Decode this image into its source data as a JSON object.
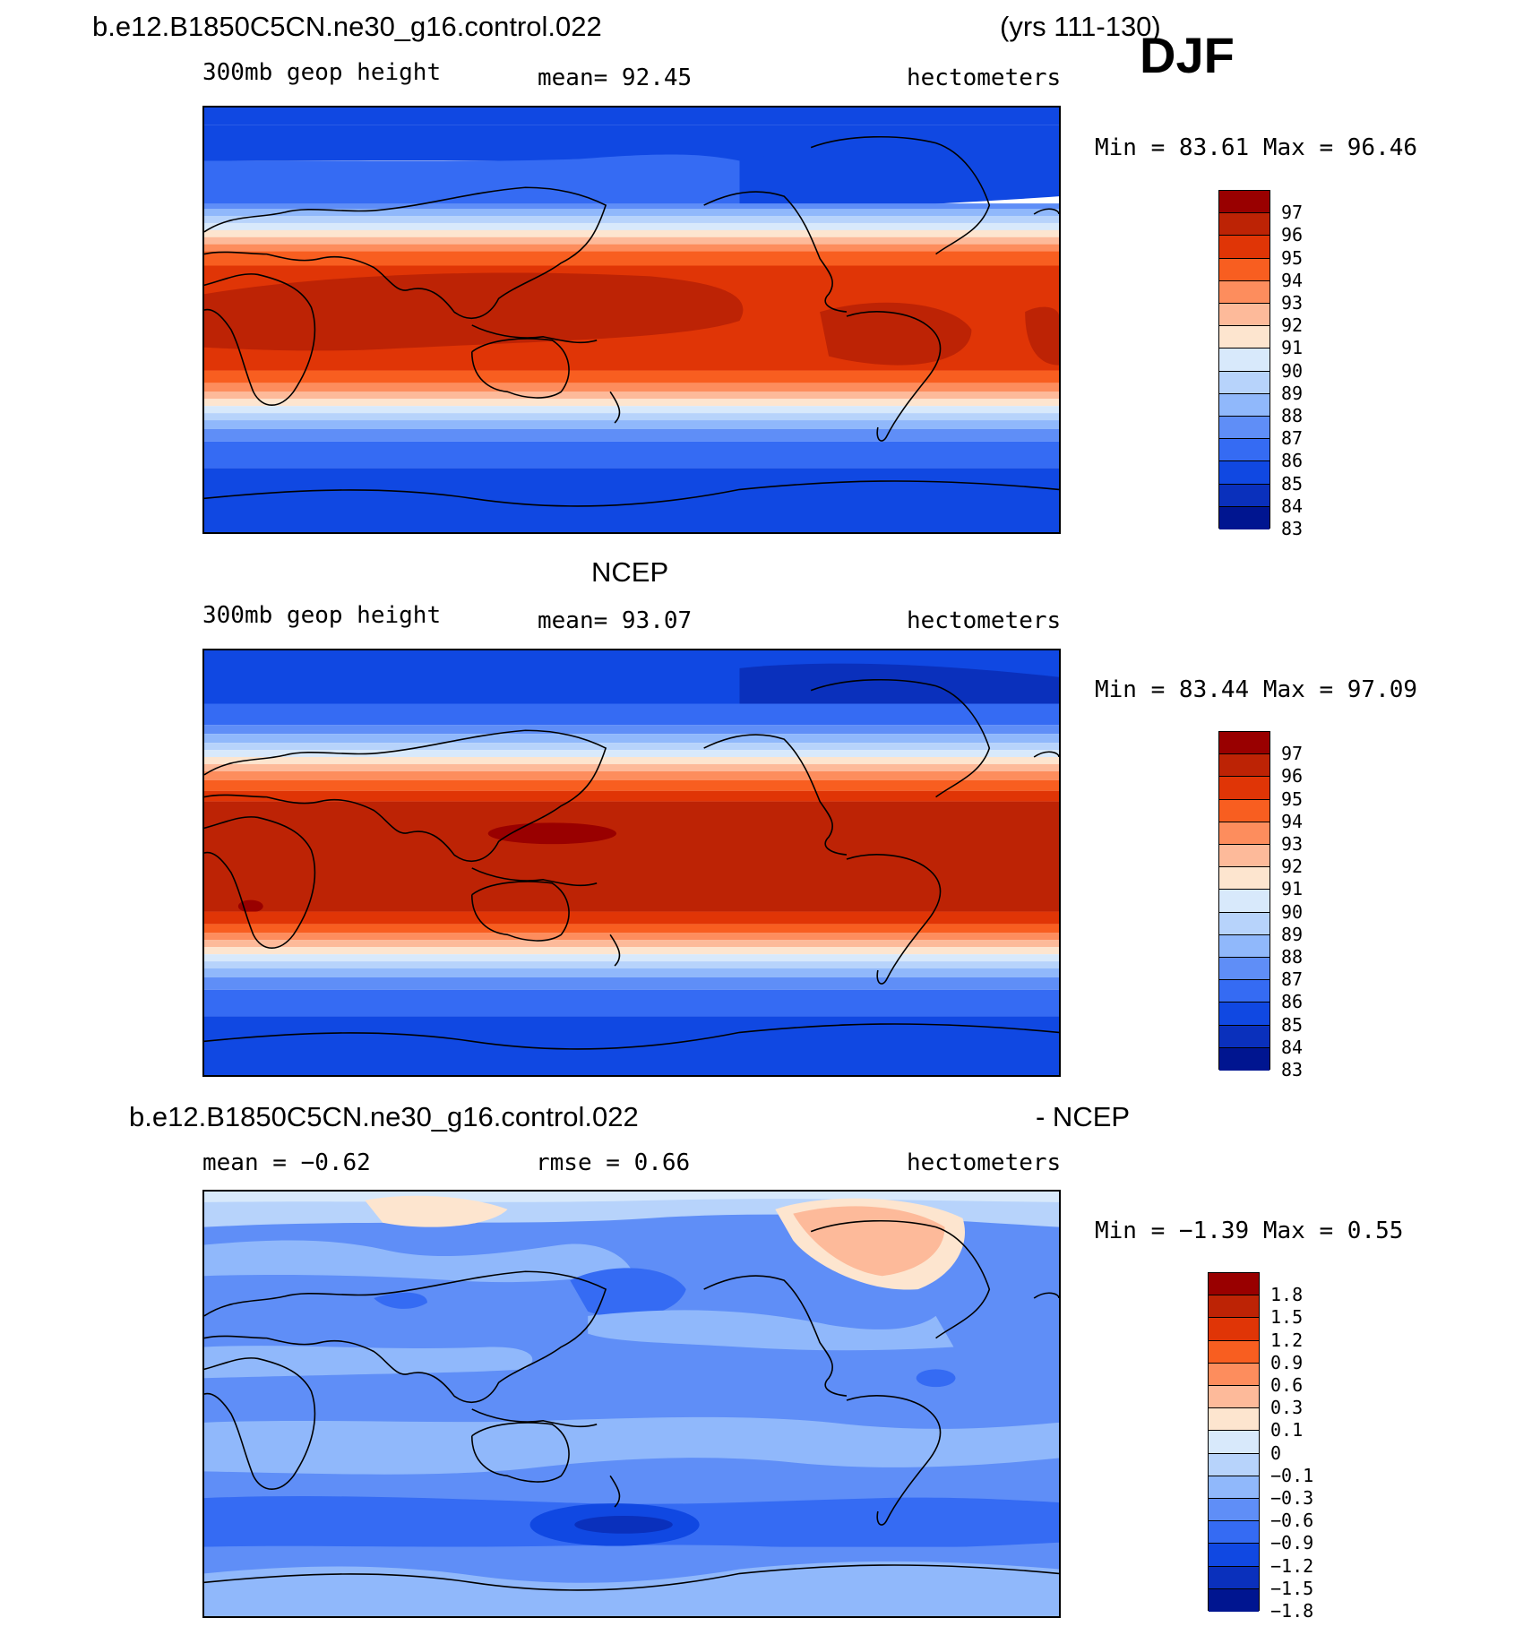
{
  "header": {
    "case_name": "b.e12.B1850C5CN.ne30_g16.control.022",
    "years": "(yrs 111-130)",
    "season": "DJF"
  },
  "colors": {
    "scale": [
      "#990000",
      "#bd2305",
      "#e03506",
      "#f85e20",
      "#fd8d5d",
      "#fdba9a",
      "#fde5cf",
      "#d8e9fb",
      "#b7d3fb",
      "#90b8fb",
      "#5f8ef7",
      "#356bf3",
      "#1048e2",
      "#0a30bc",
      "#001590"
    ],
    "coast": "#000000"
  },
  "panels": [
    {
      "title": "",
      "variable": "300mb geop height",
      "stat1": "mean=   92.45",
      "stat2": "",
      "units": "hectometers",
      "minmax": "Min =   83.61  Max =   96.46"
    },
    {
      "title": "NCEP",
      "variable": "300mb geop height",
      "stat1": "mean=   93.07",
      "stat2": "",
      "units": "hectometers",
      "minmax": "Min =   83.44  Max =   97.09"
    },
    {
      "title": "b.e12.B1850C5CN.ne30_g16.control.022",
      "title_right": "- NCEP",
      "variable": "",
      "stat1": "mean =   −0.62",
      "stat2": "rmse =    0.66",
      "units": "hectometers",
      "minmax": "Min =  −1.39  Max =    0.55"
    }
  ],
  "chart_data": [
    {
      "type": "heatmap",
      "title": "",
      "variable": "300mb geop height",
      "units": "hectometers",
      "mean": 92.45,
      "min": 83.61,
      "max": 96.46,
      "colorbar_levels": [
        "97",
        "96",
        "95",
        "94",
        "93",
        "92",
        "91",
        "90",
        "89",
        "88",
        "87",
        "86",
        "85",
        "84",
        "83"
      ]
    },
    {
      "type": "heatmap",
      "title": "NCEP",
      "variable": "300mb geop height",
      "units": "hectometers",
      "mean": 93.07,
      "min": 83.44,
      "max": 97.09,
      "colorbar_levels": [
        "97",
        "96",
        "95",
        "94",
        "93",
        "92",
        "91",
        "90",
        "89",
        "88",
        "87",
        "86",
        "85",
        "84",
        "83"
      ]
    },
    {
      "type": "heatmap",
      "title": "b.e12.B1850C5CN.ne30_g16.control.022 - NCEP",
      "units": "hectometers",
      "mean": -0.62,
      "rmse": 0.66,
      "min": -1.39,
      "max": 0.55,
      "colorbar_levels": [
        "1.8",
        "1.5",
        "1.2",
        "0.9",
        "0.6",
        "0.3",
        "0.1",
        "0",
        "−0.1",
        "−0.3",
        "−0.6",
        "−0.9",
        "−1.2",
        "−1.5",
        "−1.8"
      ]
    }
  ]
}
